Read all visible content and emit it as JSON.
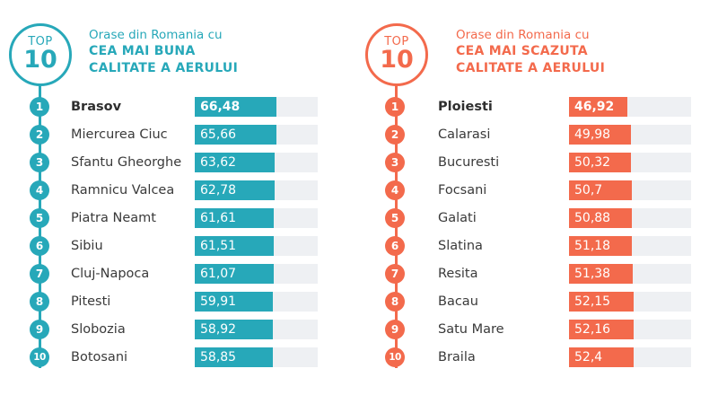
{
  "left": {
    "badge_top": "TOP",
    "badge_num": "10",
    "subtitle": "Orase din Romania cu",
    "title_line1": "CEA MAI BUNA",
    "title_line2": "CALITATE A AERULUI",
    "color": "#27a8b9",
    "rows": [
      {
        "rank": "1",
        "city": "Brasov",
        "value": "66,48"
      },
      {
        "rank": "2",
        "city": "Miercurea Ciuc",
        "value": "65,66"
      },
      {
        "rank": "3",
        "city": "Sfantu Gheorghe",
        "value": "63,62"
      },
      {
        "rank": "4",
        "city": "Ramnicu Valcea",
        "value": "62,78"
      },
      {
        "rank": "5",
        "city": "Piatra Neamt",
        "value": "61,61"
      },
      {
        "rank": "6",
        "city": "Sibiu",
        "value": "61,51"
      },
      {
        "rank": "7",
        "city": "Cluj-Napoca",
        "value": "61,07"
      },
      {
        "rank": "8",
        "city": "Pitesti",
        "value": "59,91"
      },
      {
        "rank": "9",
        "city": "Slobozia",
        "value": "58,92"
      },
      {
        "rank": "10",
        "city": "Botosani",
        "value": "58,85"
      }
    ]
  },
  "right": {
    "badge_top": "TOP",
    "badge_num": "10",
    "subtitle": "Orase din Romania cu",
    "title_line1": "CEA MAI SCAZUTA",
    "title_line2": "CALITATE A AERULUI",
    "color": "#f36a4c",
    "rows": [
      {
        "rank": "1",
        "city": "Ploiesti",
        "value": "46,92"
      },
      {
        "rank": "2",
        "city": "Calarasi",
        "value": "49,98"
      },
      {
        "rank": "3",
        "city": "Bucuresti",
        "value": "50,32"
      },
      {
        "rank": "4",
        "city": "Focsani",
        "value": "50,7"
      },
      {
        "rank": "5",
        "city": "Galati",
        "value": "50,88"
      },
      {
        "rank": "6",
        "city": "Slatina",
        "value": "51,18"
      },
      {
        "rank": "7",
        "city": "Resita",
        "value": "51,38"
      },
      {
        "rank": "8",
        "city": "Bacau",
        "value": "52,15"
      },
      {
        "rank": "9",
        "city": "Satu Mare",
        "value": "52,16"
      },
      {
        "rank": "10",
        "city": "Braila",
        "value": "52,4"
      }
    ]
  },
  "chart_data": [
    {
      "type": "bar",
      "title": "Orase din Romania cu CEA MAI BUNA CALITATE A AERULUI",
      "subtitle": "TOP 10",
      "categories": [
        "Brasov",
        "Miercurea Ciuc",
        "Sfantu Gheorghe",
        "Ramnicu Valcea",
        "Piatra Neamt",
        "Sibiu",
        "Cluj-Napoca",
        "Pitesti",
        "Slobozia",
        "Botosani"
      ],
      "values": [
        66.48,
        65.66,
        63.62,
        62.78,
        61.61,
        61.51,
        61.07,
        59.91,
        58.92,
        58.85
      ],
      "orientation": "horizontal",
      "color": "#27a8b9",
      "xlabel": "",
      "ylabel": "",
      "grid": false,
      "legend": "none"
    },
    {
      "type": "bar",
      "title": "Orase din Romania cu CEA MAI SCAZUTA CALITATE A AERULUI",
      "subtitle": "TOP 10",
      "categories": [
        "Ploiesti",
        "Calarasi",
        "Bucuresti",
        "Focsani",
        "Galati",
        "Slatina",
        "Resita",
        "Bacau",
        "Satu Mare",
        "Braila"
      ],
      "values": [
        46.92,
        49.98,
        50.32,
        50.7,
        50.88,
        51.18,
        51.38,
        52.15,
        52.16,
        52.4
      ],
      "orientation": "horizontal",
      "color": "#f36a4c",
      "xlabel": "",
      "ylabel": "",
      "grid": false,
      "legend": "none"
    }
  ]
}
